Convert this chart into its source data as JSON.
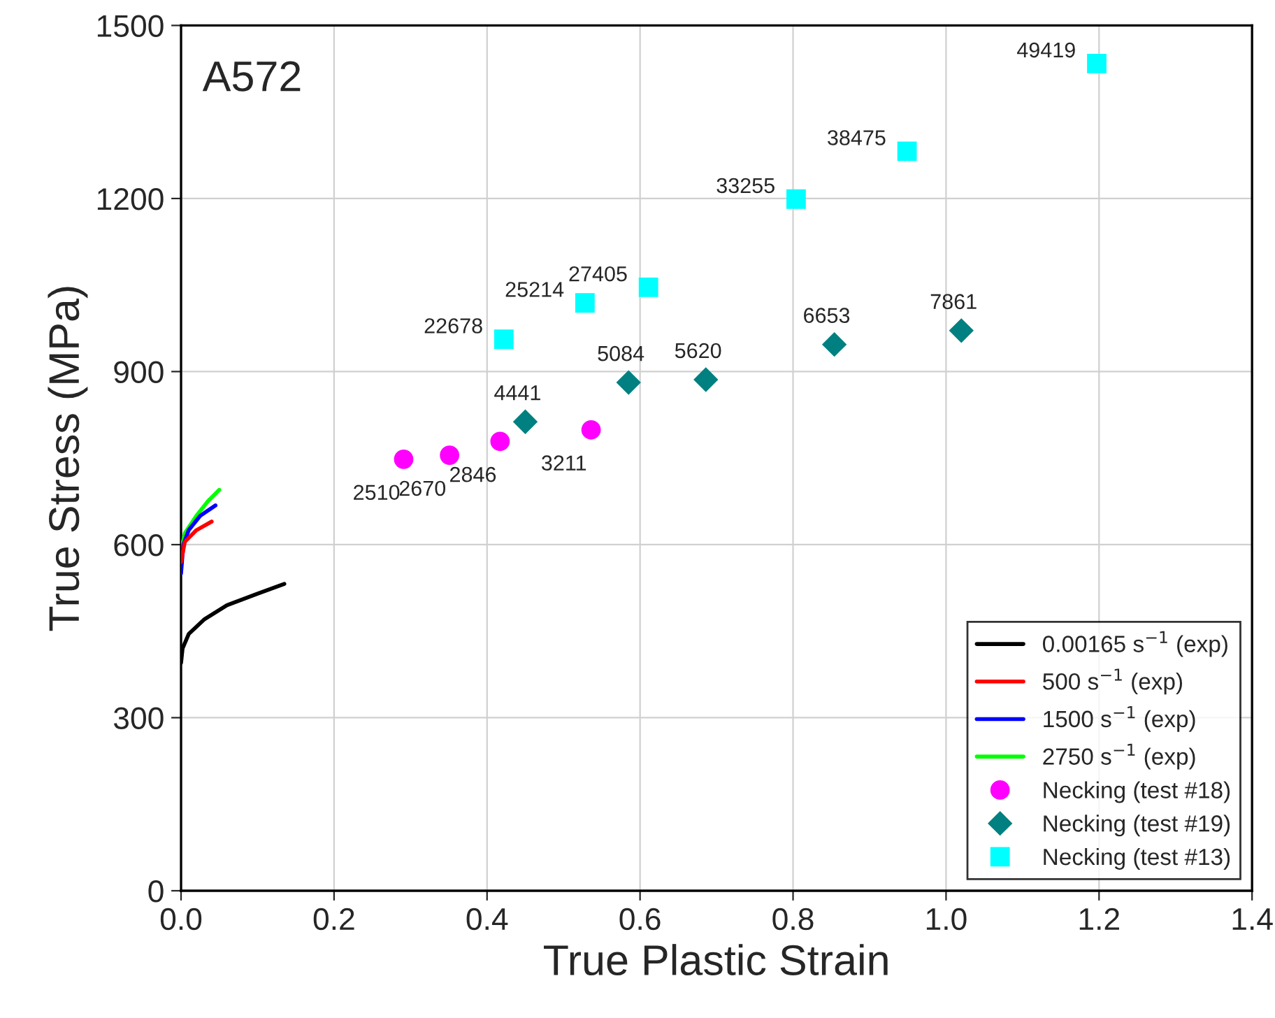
{
  "chart_data": {
    "type": "line",
    "xlabel": "True Plastic Strain",
    "ylabel": "True Stress (MPa)",
    "annotations": [
      "A572",
      {
        "text": "2510",
        "x": 0.291,
        "y": 748
      },
      {
        "text": "2670",
        "x": 0.351,
        "y": 755
      },
      {
        "text": "2846",
        "x": 0.417,
        "y": 779
      },
      {
        "text": "3211",
        "x": 0.536,
        "y": 799
      },
      {
        "text": "4441",
        "x": 0.45,
        "y": 813
      },
      {
        "text": "5084",
        "x": 0.585,
        "y": 881
      },
      {
        "text": "5620",
        "x": 0.686,
        "y": 886
      },
      {
        "text": "6653",
        "x": 0.854,
        "y": 947
      },
      {
        "text": "7861",
        "x": 1.02,
        "y": 971
      },
      {
        "text": "22678",
        "x": 0.422,
        "y": 956
      },
      {
        "text": "25214",
        "x": 0.528,
        "y": 1019
      },
      {
        "text": "27405",
        "x": 0.611,
        "y": 1046
      },
      {
        "text": "33255",
        "x": 0.804,
        "y": 1199
      },
      {
        "text": "38475",
        "x": 0.949,
        "y": 1282
      },
      {
        "text": "49419",
        "x": 1.197,
        "y": 1434
      }
    ],
    "xlim": [
      0,
      1.4
    ],
    "xticks": [
      {
        "value": 0,
        "label": "0.0"
      },
      0.2,
      0.4,
      0.6,
      0.8,
      {
        "value": 1,
        "label": "1.0"
      },
      1.2,
      1.4
    ],
    "ylim": [
      0,
      1500
    ],
    "yticks": [
      0,
      300,
      600,
      900,
      1200,
      1500
    ],
    "grid": true,
    "legend": "bottom right",
    "series": [
      {
        "name": "0.00165 s$^{−1}$ (exp)",
        "color": "#000000",
        "x": [
          0,
          0.002,
          0.01,
          0.03,
          0.06,
          0.1,
          0.135
        ],
        "values": [
          395,
          420,
          445,
          470,
          495,
          515,
          532
        ]
      },
      {
        "name": "500 s$^{−1}$ (exp)",
        "color": "#ff0000",
        "x": [
          0,
          0.005,
          0.02,
          0.04
        ],
        "values": [
          570,
          605,
          625,
          640
        ]
      },
      {
        "name": "1500 s$^{−1}$ (exp)",
        "color": "#0000ff",
        "x": [
          0,
          0.003,
          0.01,
          0.025,
          0.045
        ],
        "values": [
          550,
          600,
          625,
          650,
          668
        ]
      },
      {
        "name": "2750 s$^{−1}$ (exp)",
        "color": "#00ff00",
        "x": [
          0,
          0.005,
          0.02,
          0.035,
          0.05
        ],
        "values": [
          590,
          620,
          650,
          675,
          695
        ]
      },
      {
        "name": "Necking (test #18)",
        "type": "scatter",
        "marker": "circle",
        "color": "#ff00ff",
        "x": [
          0.291,
          0.351,
          0.417,
          0.536
        ],
        "values": [
          748,
          755,
          779,
          799
        ]
      },
      {
        "name": "Necking (test #19)",
        "type": "scatter",
        "marker": "diamond",
        "color": "#008080",
        "x": [
          0.45,
          0.585,
          0.686,
          0.854,
          1.02
        ],
        "values": [
          813,
          881,
          886,
          947,
          971
        ]
      },
      {
        "name": "Necking (test #13)",
        "type": "scatter",
        "marker": "square",
        "color": "#00ffff",
        "x": [
          0.422,
          0.528,
          0.611,
          0.804,
          0.949,
          1.197
        ],
        "values": [
          956,
          1019,
          1046,
          1199,
          1282,
          1434
        ]
      }
    ]
  }
}
